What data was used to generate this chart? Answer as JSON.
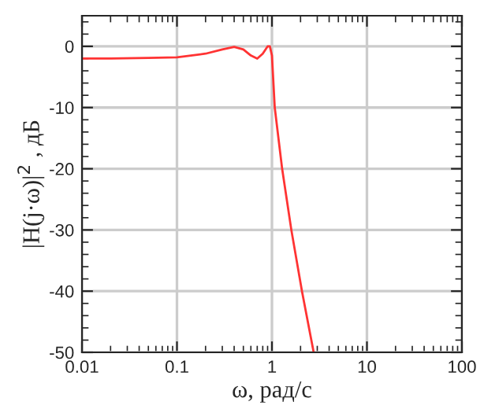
{
  "chart_data": {
    "type": "line",
    "xlabel": "ω, рад/с",
    "ylabel": "|H(j·ω)|$^{2}$ , дБ",
    "log": "x",
    "x": [
      0.01,
      0.02,
      0.05,
      0.1,
      0.2,
      0.3,
      0.4,
      0.5,
      0.6,
      0.7,
      0.8,
      0.9,
      0.95,
      1.0,
      1.07,
      1.28,
      1.6,
      2.07,
      2.75
    ],
    "series": [
      {
        "color": "#ff3333",
        "values": [
          -2.0,
          -2.0,
          -1.9,
          -1.8,
          -1.2,
          -0.5,
          -0.1,
          -0.5,
          -1.5,
          -2.0,
          -1.2,
          0.0,
          0.0,
          -1.5,
          -10,
          -20,
          -30,
          -40,
          -50
        ]
      }
    ],
    "xlim": [
      0.01,
      100
    ],
    "ylim": [
      -50,
      5
    ],
    "xticks": [
      0.01,
      0.1,
      1,
      10,
      100
    ],
    "yticks": [
      -50,
      -40,
      -30,
      -20,
      -10,
      0
    ],
    "grid": true,
    "line_style": "solid",
    "marker": "none"
  }
}
